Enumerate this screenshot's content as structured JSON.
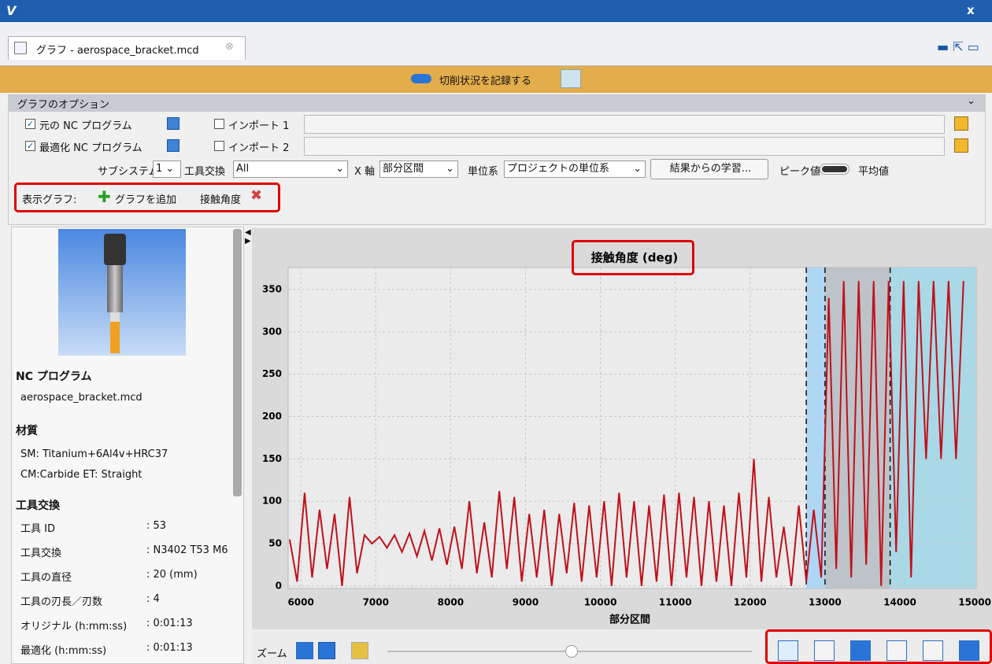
{
  "window": {
    "icon": "V",
    "close": "x"
  },
  "tab": {
    "title": "グラフ - aerospace_bracket.mcd"
  },
  "banner": {
    "label": "切削状況を記録する"
  },
  "options": {
    "title": "グラフのオプション",
    "original_nc": "元の NC プログラム",
    "optimized_nc": "最適化 NC プログラム",
    "import1": "インポート 1",
    "import2": "インポート 2",
    "subsystem_label": "サブシステム",
    "subsystem_value": "1",
    "tool_change_label": "工具交換",
    "tool_change_value": "All",
    "x_axis_label": "X 軸",
    "x_axis_value": "部分区間",
    "unit_label": "単位系",
    "unit_value": "プロジェクトの単位系",
    "learn_button": "結果からの学習...",
    "peak": "ピーク値",
    "average": "平均値",
    "display_label": "表示グラフ:",
    "add_graph": "グラフを追加",
    "graph_item": "接触角度"
  },
  "left_panel": {
    "nc_heading": "NC プログラム",
    "nc_file": "aerospace_bracket.mcd",
    "material_heading": "材質",
    "sm": "SM: Titanium+6Al4v+HRC37",
    "cm": "CM:Carbide ET: Straight",
    "tool_heading": "工具交換",
    "rows": [
      [
        "工具 ID",
        ": 53"
      ],
      [
        "工具交換",
        ": N3402 T53 M6"
      ],
      [
        "工具の直径",
        ": 20 (mm)"
      ],
      [
        "工具の刃長／刃数",
        ": 4"
      ],
      [
        "オリジナル (h:mm:ss)",
        ": 0:01:13"
      ],
      [
        "最適化 (h:mm:ss)",
        ": 0:01:13"
      ]
    ]
  },
  "zoom": {
    "label": "ズーム"
  },
  "chart_data": {
    "type": "line",
    "title": "接触角度 (deg)",
    "xlabel": "部分区間",
    "xlim": [
      5830,
      15020
    ],
    "xticks": [
      6000,
      7000,
      8000,
      9000,
      10000,
      11000,
      12000,
      13000,
      14000,
      15000
    ],
    "ylim": [
      -3,
      376
    ],
    "yticks": [
      0,
      50,
      100,
      150,
      200,
      250,
      300,
      350
    ],
    "grid": true,
    "color": "#c0101a",
    "regions": [
      {
        "start": 12750,
        "end": 13000,
        "color": "#aed6f5"
      },
      {
        "start": 13000,
        "end": 13870,
        "color": "#bcc3c9"
      },
      {
        "start": 13870,
        "end": 15020,
        "color": "#a9d8e6"
      }
    ],
    "x": [
      5850,
      5950,
      6050,
      6150,
      6250,
      6350,
      6450,
      6550,
      6650,
      6750,
      6850,
      6950,
      7050,
      7150,
      7250,
      7350,
      7450,
      7550,
      7650,
      7750,
      7850,
      7950,
      8050,
      8150,
      8250,
      8350,
      8450,
      8550,
      8650,
      8750,
      8850,
      8950,
      9050,
      9150,
      9250,
      9350,
      9450,
      9550,
      9650,
      9750,
      9850,
      9950,
      10050,
      10150,
      10250,
      10350,
      10450,
      10550,
      10650,
      10750,
      10850,
      10950,
      11050,
      11150,
      11250,
      11350,
      11450,
      11550,
      11650,
      11750,
      11850,
      11950,
      12050,
      12150,
      12250,
      12350,
      12450,
      12550,
      12650,
      12750,
      12850,
      12950,
      13050,
      13150,
      13250,
      13350,
      13450,
      13550,
      13650,
      13750,
      13850,
      13950,
      14050,
      14150,
      14250,
      14350,
      14450,
      14550,
      14650,
      14750,
      14850
    ],
    "values": [
      55,
      5,
      110,
      10,
      90,
      20,
      85,
      0,
      105,
      15,
      60,
      50,
      58,
      45,
      60,
      40,
      62,
      35,
      65,
      30,
      68,
      25,
      70,
      20,
      100,
      15,
      75,
      10,
      112,
      20,
      105,
      5,
      85,
      10,
      90,
      0,
      85,
      15,
      98,
      5,
      95,
      10,
      100,
      0,
      110,
      10,
      100,
      0,
      95,
      5,
      108,
      0,
      110,
      10,
      105,
      0,
      100,
      5,
      95,
      0,
      110,
      10,
      150,
      5,
      105,
      10,
      70,
      0,
      95,
      5,
      90,
      10,
      340,
      20,
      360,
      10,
      360,
      25,
      360,
      0,
      360,
      40,
      360,
      10,
      360,
      150,
      360,
      150,
      360,
      150,
      360
    ]
  }
}
